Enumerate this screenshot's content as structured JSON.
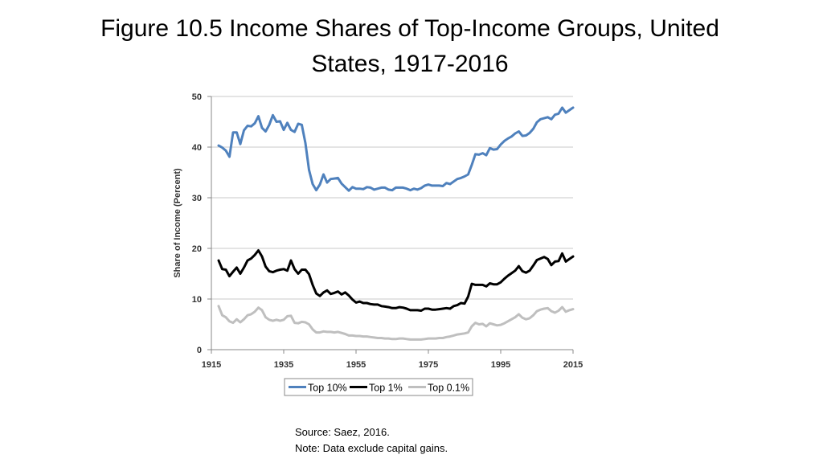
{
  "slide": {
    "title_line1": "Figure 10.5 Income Shares of Top-Income Groups, United",
    "title_line2": "States, 1917-2016",
    "source": "Source: Saez, 2016.",
    "note": "Note: Data exclude capital gains."
  },
  "chart_data": {
    "type": "line",
    "title": "",
    "xlabel": "",
    "ylabel": "Share of Income (Percent)",
    "xlim": [
      1915,
      2015
    ],
    "ylim": [
      0,
      50
    ],
    "x_ticks": [
      "1915",
      "1935",
      "1955",
      "1975",
      "1995",
      "2015"
    ],
    "y_ticks": [
      "0",
      "10",
      "20",
      "30",
      "40",
      "50"
    ],
    "grid": "horizontal",
    "legend_position": "bottom",
    "series": [
      {
        "name": "Top 10%",
        "color": "#4f81bd",
        "points": [
          [
            1917,
            40.3
          ],
          [
            1918,
            39.9
          ],
          [
            1919,
            39.3
          ],
          [
            1920,
            38.1
          ],
          [
            1921,
            42.9
          ],
          [
            1922,
            42.9
          ],
          [
            1923,
            40.6
          ],
          [
            1924,
            43.3
          ],
          [
            1925,
            44.2
          ],
          [
            1926,
            44.1
          ],
          [
            1927,
            44.7
          ],
          [
            1928,
            46.1
          ],
          [
            1929,
            43.8
          ],
          [
            1930,
            43.1
          ],
          [
            1931,
            44.4
          ],
          [
            1932,
            46.3
          ],
          [
            1933,
            45.0
          ],
          [
            1934,
            45.1
          ],
          [
            1935,
            43.4
          ],
          [
            1936,
            44.8
          ],
          [
            1937,
            43.4
          ],
          [
            1938,
            43.0
          ],
          [
            1939,
            44.6
          ],
          [
            1940,
            44.4
          ],
          [
            1941,
            40.8
          ],
          [
            1942,
            35.5
          ],
          [
            1943,
            32.7
          ],
          [
            1944,
            31.5
          ],
          [
            1945,
            32.6
          ],
          [
            1946,
            34.6
          ],
          [
            1947,
            33.0
          ],
          [
            1948,
            33.7
          ],
          [
            1949,
            33.8
          ],
          [
            1950,
            33.9
          ],
          [
            1951,
            32.8
          ],
          [
            1952,
            32.1
          ],
          [
            1953,
            31.4
          ],
          [
            1954,
            32.1
          ],
          [
            1955,
            31.8
          ],
          [
            1956,
            31.8
          ],
          [
            1957,
            31.7
          ],
          [
            1958,
            32.1
          ],
          [
            1959,
            32.0
          ],
          [
            1960,
            31.6
          ],
          [
            1961,
            31.8
          ],
          [
            1962,
            32.0
          ],
          [
            1963,
            32.0
          ],
          [
            1964,
            31.6
          ],
          [
            1965,
            31.5
          ],
          [
            1966,
            32.0
          ],
          [
            1967,
            32.0
          ],
          [
            1968,
            32.0
          ],
          [
            1969,
            31.8
          ],
          [
            1970,
            31.5
          ],
          [
            1971,
            31.8
          ],
          [
            1972,
            31.6
          ],
          [
            1973,
            31.9
          ],
          [
            1974,
            32.4
          ],
          [
            1975,
            32.6
          ],
          [
            1976,
            32.4
          ],
          [
            1977,
            32.4
          ],
          [
            1978,
            32.4
          ],
          [
            1979,
            32.3
          ],
          [
            1980,
            32.9
          ],
          [
            1981,
            32.7
          ],
          [
            1982,
            33.2
          ],
          [
            1983,
            33.7
          ],
          [
            1984,
            33.9
          ],
          [
            1985,
            34.2
          ],
          [
            1986,
            34.6
          ],
          [
            1987,
            36.5
          ],
          [
            1988,
            38.6
          ],
          [
            1989,
            38.5
          ],
          [
            1990,
            38.8
          ],
          [
            1991,
            38.4
          ],
          [
            1992,
            39.8
          ],
          [
            1993,
            39.5
          ],
          [
            1994,
            39.6
          ],
          [
            1995,
            40.5
          ],
          [
            1996,
            41.2
          ],
          [
            1997,
            41.7
          ],
          [
            1998,
            42.1
          ],
          [
            1999,
            42.7
          ],
          [
            2000,
            43.1
          ],
          [
            2001,
            42.2
          ],
          [
            2002,
            42.3
          ],
          [
            2003,
            42.8
          ],
          [
            2004,
            43.6
          ],
          [
            2005,
            44.9
          ],
          [
            2006,
            45.5
          ],
          [
            2007,
            45.7
          ],
          [
            2008,
            45.9
          ],
          [
            2009,
            45.5
          ],
          [
            2010,
            46.4
          ],
          [
            2011,
            46.6
          ],
          [
            2012,
            47.8
          ],
          [
            2013,
            46.8
          ],
          [
            2014,
            47.3
          ],
          [
            2015,
            47.8
          ]
        ]
      },
      {
        "name": "Top 1%",
        "color": "#000000",
        "points": [
          [
            1917,
            17.6
          ],
          [
            1918,
            15.9
          ],
          [
            1919,
            15.8
          ],
          [
            1920,
            14.5
          ],
          [
            1921,
            15.4
          ],
          [
            1922,
            16.2
          ],
          [
            1923,
            15.0
          ],
          [
            1924,
            16.2
          ],
          [
            1925,
            17.6
          ],
          [
            1926,
            18.0
          ],
          [
            1927,
            18.7
          ],
          [
            1928,
            19.6
          ],
          [
            1929,
            18.4
          ],
          [
            1930,
            16.4
          ],
          [
            1931,
            15.5
          ],
          [
            1932,
            15.3
          ],
          [
            1933,
            15.6
          ],
          [
            1934,
            15.8
          ],
          [
            1935,
            15.9
          ],
          [
            1936,
            15.6
          ],
          [
            1937,
            17.6
          ],
          [
            1938,
            15.9
          ],
          [
            1939,
            15.0
          ],
          [
            1940,
            15.8
          ],
          [
            1941,
            15.8
          ],
          [
            1942,
            14.9
          ],
          [
            1943,
            12.8
          ],
          [
            1944,
            11.1
          ],
          [
            1945,
            10.6
          ],
          [
            1946,
            11.3
          ],
          [
            1947,
            11.7
          ],
          [
            1948,
            11.0
          ],
          [
            1949,
            11.2
          ],
          [
            1950,
            11.5
          ],
          [
            1951,
            10.9
          ],
          [
            1952,
            11.3
          ],
          [
            1953,
            10.7
          ],
          [
            1954,
            9.9
          ],
          [
            1955,
            9.3
          ],
          [
            1956,
            9.5
          ],
          [
            1957,
            9.2
          ],
          [
            1958,
            9.2
          ],
          [
            1959,
            9.0
          ],
          [
            1960,
            8.9
          ],
          [
            1961,
            8.9
          ],
          [
            1962,
            8.6
          ],
          [
            1963,
            8.5
          ],
          [
            1964,
            8.4
          ],
          [
            1965,
            8.2
          ],
          [
            1966,
            8.2
          ],
          [
            1967,
            8.4
          ],
          [
            1968,
            8.3
          ],
          [
            1969,
            8.1
          ],
          [
            1970,
            7.8
          ],
          [
            1971,
            7.8
          ],
          [
            1972,
            7.8
          ],
          [
            1973,
            7.7
          ],
          [
            1974,
            8.1
          ],
          [
            1975,
            8.1
          ],
          [
            1976,
            7.9
          ],
          [
            1977,
            7.9
          ],
          [
            1978,
            8.0
          ],
          [
            1979,
            8.1
          ],
          [
            1980,
            8.2
          ],
          [
            1981,
            8.1
          ],
          [
            1982,
            8.6
          ],
          [
            1983,
            8.8
          ],
          [
            1984,
            9.2
          ],
          [
            1985,
            9.1
          ],
          [
            1986,
            10.5
          ],
          [
            1987,
            13.0
          ],
          [
            1988,
            12.8
          ],
          [
            1989,
            12.8
          ],
          [
            1990,
            12.8
          ],
          [
            1991,
            12.5
          ],
          [
            1992,
            13.1
          ],
          [
            1993,
            12.9
          ],
          [
            1994,
            12.9
          ],
          [
            1995,
            13.3
          ],
          [
            1996,
            14.0
          ],
          [
            1997,
            14.6
          ],
          [
            1998,
            15.1
          ],
          [
            1999,
            15.6
          ],
          [
            2000,
            16.5
          ],
          [
            2001,
            15.5
          ],
          [
            2002,
            15.2
          ],
          [
            2003,
            15.6
          ],
          [
            2004,
            16.6
          ],
          [
            2005,
            17.7
          ],
          [
            2006,
            18.0
          ],
          [
            2007,
            18.3
          ],
          [
            2008,
            17.9
          ],
          [
            2009,
            16.7
          ],
          [
            2010,
            17.4
          ],
          [
            2011,
            17.5
          ],
          [
            2012,
            19.0
          ],
          [
            2013,
            17.4
          ],
          [
            2014,
            17.9
          ],
          [
            2015,
            18.4
          ]
        ]
      },
      {
        "name": "Top 0.1%",
        "color": "#bfbfbf",
        "points": [
          [
            1917,
            8.6
          ],
          [
            1918,
            6.8
          ],
          [
            1919,
            6.4
          ],
          [
            1920,
            5.6
          ],
          [
            1921,
            5.3
          ],
          [
            1922,
            6.0
          ],
          [
            1923,
            5.4
          ],
          [
            1924,
            6.0
          ],
          [
            1925,
            6.8
          ],
          [
            1926,
            7.0
          ],
          [
            1927,
            7.5
          ],
          [
            1928,
            8.3
          ],
          [
            1929,
            7.8
          ],
          [
            1930,
            6.4
          ],
          [
            1931,
            5.9
          ],
          [
            1932,
            5.7
          ],
          [
            1933,
            5.9
          ],
          [
            1934,
            5.7
          ],
          [
            1935,
            5.9
          ],
          [
            1936,
            6.6
          ],
          [
            1937,
            6.7
          ],
          [
            1938,
            5.3
          ],
          [
            1939,
            5.2
          ],
          [
            1940,
            5.5
          ],
          [
            1941,
            5.4
          ],
          [
            1942,
            5.0
          ],
          [
            1943,
            4.0
          ],
          [
            1944,
            3.4
          ],
          [
            1945,
            3.4
          ],
          [
            1946,
            3.6
          ],
          [
            1947,
            3.5
          ],
          [
            1948,
            3.5
          ],
          [
            1949,
            3.4
          ],
          [
            1950,
            3.5
          ],
          [
            1951,
            3.3
          ],
          [
            1952,
            3.1
          ],
          [
            1953,
            2.8
          ],
          [
            1954,
            2.8
          ],
          [
            1955,
            2.7
          ],
          [
            1956,
            2.7
          ],
          [
            1957,
            2.6
          ],
          [
            1958,
            2.6
          ],
          [
            1959,
            2.5
          ],
          [
            1960,
            2.4
          ],
          [
            1961,
            2.3
          ],
          [
            1962,
            2.3
          ],
          [
            1963,
            2.2
          ],
          [
            1964,
            2.2
          ],
          [
            1965,
            2.1
          ],
          [
            1966,
            2.1
          ],
          [
            1967,
            2.2
          ],
          [
            1968,
            2.2
          ],
          [
            1969,
            2.1
          ],
          [
            1970,
            2.0
          ],
          [
            1971,
            2.0
          ],
          [
            1972,
            2.0
          ],
          [
            1973,
            2.0
          ],
          [
            1974,
            2.1
          ],
          [
            1975,
            2.2
          ],
          [
            1976,
            2.2
          ],
          [
            1977,
            2.2
          ],
          [
            1978,
            2.3
          ],
          [
            1979,
            2.3
          ],
          [
            1980,
            2.5
          ],
          [
            1981,
            2.6
          ],
          [
            1982,
            2.8
          ],
          [
            1983,
            3.0
          ],
          [
            1984,
            3.1
          ],
          [
            1985,
            3.2
          ],
          [
            1986,
            3.4
          ],
          [
            1987,
            4.6
          ],
          [
            1988,
            5.3
          ],
          [
            1989,
            5.0
          ],
          [
            1990,
            5.1
          ],
          [
            1991,
            4.6
          ],
          [
            1992,
            5.2
          ],
          [
            1993,
            5.0
          ],
          [
            1994,
            4.8
          ],
          [
            1995,
            4.9
          ],
          [
            1996,
            5.2
          ],
          [
            1997,
            5.6
          ],
          [
            1998,
            6.0
          ],
          [
            1999,
            6.4
          ],
          [
            2000,
            7.0
          ],
          [
            2001,
            6.3
          ],
          [
            2002,
            6.0
          ],
          [
            2003,
            6.2
          ],
          [
            2004,
            6.8
          ],
          [
            2005,
            7.6
          ],
          [
            2006,
            7.9
          ],
          [
            2007,
            8.1
          ],
          [
            2008,
            8.2
          ],
          [
            2009,
            7.6
          ],
          [
            2010,
            7.3
          ],
          [
            2011,
            7.7
          ],
          [
            2012,
            8.4
          ],
          [
            2013,
            7.5
          ],
          [
            2014,
            7.8
          ],
          [
            2015,
            8.0
          ]
        ]
      }
    ]
  }
}
